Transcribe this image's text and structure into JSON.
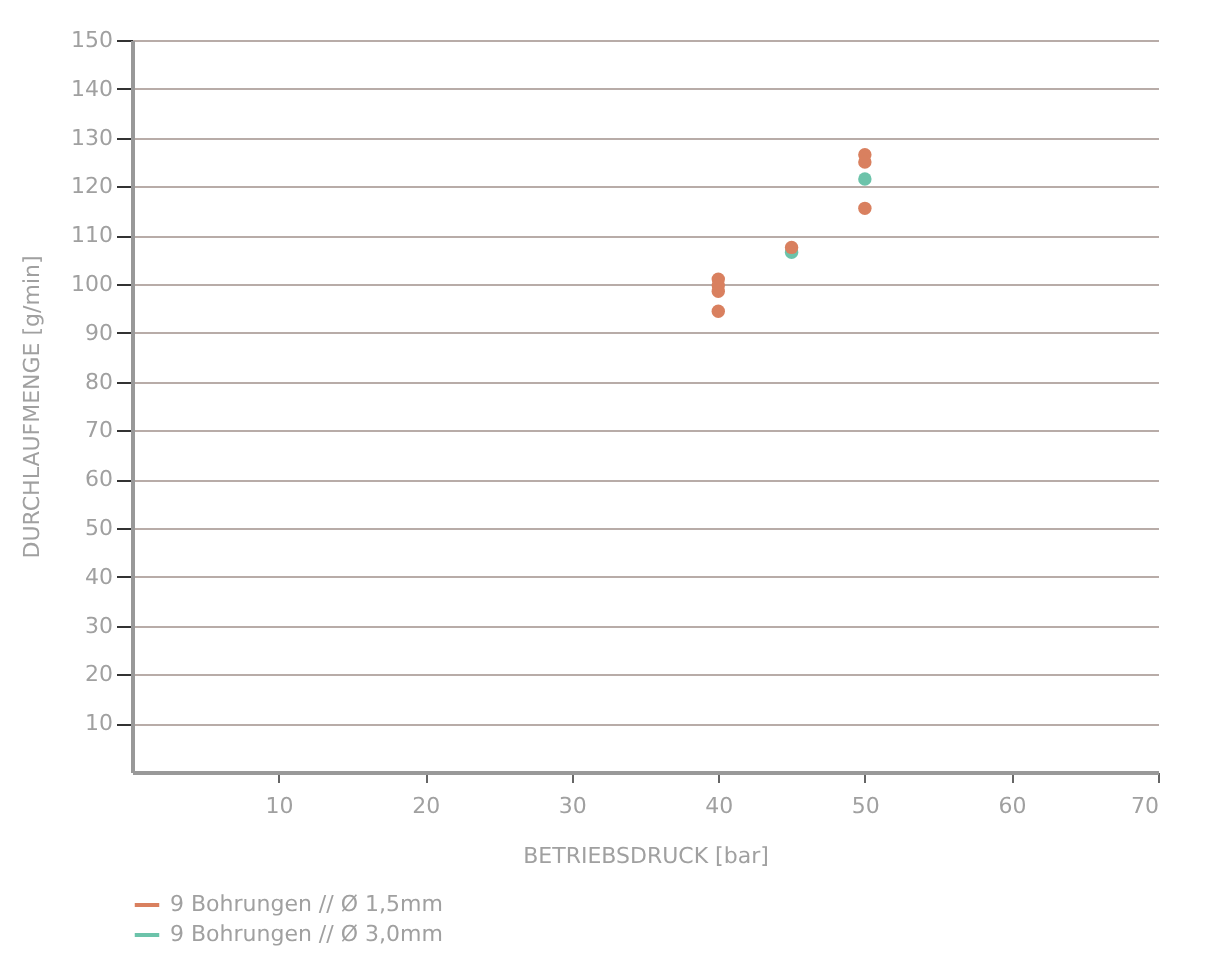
{
  "chart_data": {
    "type": "scatter",
    "xlabel": "BETRIEBSDRUCK [bar]",
    "ylabel": "DURCHLAUFMENGE [g/min]",
    "xlim": [
      0,
      70
    ],
    "xticks": [
      10,
      20,
      30,
      40,
      50,
      60,
      70
    ],
    "ylim": [
      0,
      150
    ],
    "yticks": [
      10,
      20,
      30,
      40,
      50,
      60,
      70,
      80,
      90,
      100,
      110,
      120,
      130,
      140,
      150
    ],
    "grid": "y",
    "legend": "bottom",
    "marker": "circle",
    "series": [
      {
        "name": "9 Bohrungen // Ø 1,5mm",
        "color": "#d9805f",
        "x": [
          40,
          40,
          40,
          40,
          45,
          50,
          50,
          50
        ],
        "values": [
          101,
          99.7,
          98.5,
          94.4,
          107.5,
          126.5,
          125,
          115.5
        ]
      },
      {
        "name": "9 Bohrungen // Ø 3,0mm",
        "color": "#6cc3aa",
        "x": [
          45,
          50
        ],
        "values": [
          106.5,
          121.5
        ]
      }
    ]
  }
}
